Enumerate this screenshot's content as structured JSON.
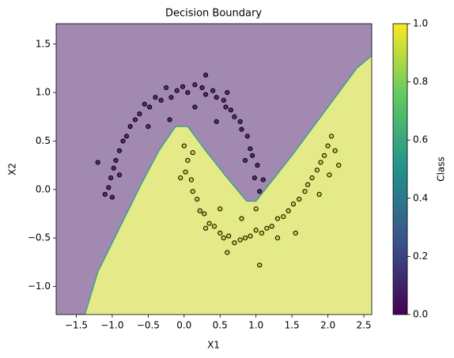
{
  "chart_data": {
    "type": "scatter",
    "title": "Decision Boundary",
    "x_label": "X1",
    "y_label": "X2",
    "xlim": [
      -1.78,
      2.61
    ],
    "ylim": [
      -1.29,
      1.71
    ],
    "xticks": [
      {
        "value": -1.5,
        "label": "−1.5"
      },
      {
        "value": -1.0,
        "label": "−1.0"
      },
      {
        "value": -0.5,
        "label": "−0.5"
      },
      {
        "value": 0,
        "label": "0.0"
      },
      0.5,
      {
        "value": 1,
        "label": "1.0"
      },
      1.5,
      {
        "value": 2,
        "label": "2.0"
      },
      2.5
    ],
    "yticks": [
      {
        "value": -1.0,
        "label": "−1.0"
      },
      {
        "value": -0.5,
        "label": "−0.5"
      },
      {
        "value": 0,
        "label": "0.0"
      },
      0.5,
      {
        "value": 1,
        "label": "1.0"
      },
      1.5
    ],
    "region_colors": [
      "#a189b1",
      "#e4ea88"
    ],
    "boundary": {
      "x": [
        -1.38,
        -1.2,
        -0.9,
        -0.6,
        -0.35,
        -0.12,
        0.05,
        0.3,
        0.6,
        0.87,
        1.0,
        1.5,
        2.0,
        2.4,
        2.61
      ],
      "y": [
        -1.29,
        -0.85,
        -0.4,
        0.05,
        0.4,
        0.65,
        0.65,
        0.4,
        0.12,
        -0.12,
        -0.12,
        0.35,
        0.85,
        1.25,
        1.38
      ],
      "color": "#3fa28a"
    },
    "series": [
      {
        "color": "#5b2a6b",
        "x": [
          1.05,
          0.98,
          1.02,
          0.95,
          0.92,
          0.88,
          0.8,
          0.78,
          0.7,
          0.65,
          0.58,
          0.55,
          0.45,
          0.4,
          0.3,
          0.25,
          0.15,
          0.05,
          -0.02,
          -0.1,
          -0.18,
          -0.25,
          -0.32,
          -0.4,
          -0.48,
          -0.55,
          -0.62,
          -0.68,
          -0.75,
          -0.8,
          -0.85,
          -0.9,
          -0.95,
          -0.98,
          -1.02,
          -1.05,
          -1.1,
          -1.0,
          0.3,
          -0.2,
          0.6,
          0.15,
          -0.5,
          0.85,
          -0.9,
          1.1,
          -1.2,
          0.45
        ],
        "values": [
          -0.02,
          0.12,
          0.25,
          0.35,
          0.42,
          0.55,
          0.62,
          0.7,
          0.75,
          0.82,
          0.85,
          0.92,
          0.95,
          1.02,
          0.98,
          1.05,
          1.08,
          1.0,
          1.06,
          1.02,
          0.95,
          1.05,
          0.92,
          0.95,
          0.85,
          0.88,
          0.78,
          0.72,
          0.65,
          0.55,
          0.5,
          0.4,
          0.3,
          0.22,
          0.12,
          0.02,
          -0.05,
          -0.08,
          1.18,
          0.72,
          1.0,
          0.85,
          0.65,
          0.3,
          0.15,
          0.1,
          0.28,
          0.7
        ]
      },
      {
        "color": "#d4d13f",
        "x": [
          0.0,
          0.05,
          0.02,
          0.1,
          0.12,
          0.18,
          0.22,
          0.28,
          0.35,
          0.42,
          0.5,
          0.55,
          0.62,
          0.7,
          0.78,
          0.85,
          0.92,
          1.0,
          1.08,
          1.15,
          1.22,
          1.3,
          1.38,
          1.45,
          1.52,
          1.6,
          1.68,
          1.72,
          1.78,
          1.85,
          1.9,
          1.95,
          2.0,
          2.05,
          2.1,
          2.02,
          0.3,
          0.6,
          1.05,
          0.12,
          1.55,
          2.15,
          0.5,
          1.3,
          0.8,
          1.88,
          -0.05,
          1.0
        ],
        "values": [
          0.45,
          0.3,
          0.18,
          0.1,
          -0.02,
          -0.1,
          -0.22,
          -0.25,
          -0.35,
          -0.38,
          -0.45,
          -0.5,
          -0.48,
          -0.55,
          -0.52,
          -0.5,
          -0.48,
          -0.42,
          -0.45,
          -0.4,
          -0.38,
          -0.3,
          -0.28,
          -0.22,
          -0.15,
          -0.1,
          -0.02,
          0.05,
          0.12,
          0.2,
          0.28,
          0.35,
          0.45,
          0.55,
          0.4,
          0.15,
          -0.4,
          -0.65,
          -0.78,
          0.38,
          -0.45,
          0.25,
          -0.2,
          -0.5,
          -0.3,
          -0.05,
          0.12,
          -0.2
        ]
      }
    ],
    "colorbar": {
      "label": "Class",
      "clim": [
        0,
        1
      ],
      "ticks": [
        {
          "value": 0,
          "label": "0.0"
        },
        0.2,
        0.4,
        0.6,
        0.8,
        {
          "value": 1,
          "label": "1.0"
        }
      ],
      "colors": [
        "#440154",
        "#3b528b",
        "#21918c",
        "#5ec962",
        "#fde725"
      ]
    }
  }
}
